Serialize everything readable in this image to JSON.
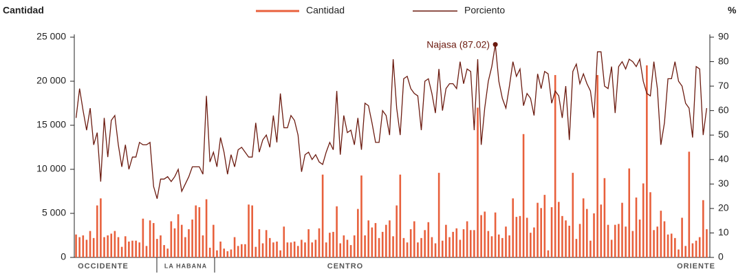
{
  "chart_data": {
    "type": "bar_line",
    "y_title": "Cantidad",
    "y2_title": "%",
    "regions": [
      "OCCIDENTE",
      "LA HABANA",
      "CENTRO",
      "ORIENTE"
    ],
    "annotation": "Najasa (87.02)",
    "ylim": [
      0,
      25000
    ],
    "yticks": [
      0,
      {
        "value": 5000,
        "label": "5 000"
      },
      {
        "value": 10000,
        "label": "10 000"
      },
      {
        "value": 15000,
        "label": "15 000"
      },
      {
        "value": 20000,
        "label": "20 000"
      },
      {
        "value": 25000,
        "label": "25 000"
      }
    ],
    "y2lim": [
      0,
      90
    ],
    "y2ticks": [
      0,
      10,
      20,
      30,
      40,
      50,
      60,
      70,
      80,
      90
    ],
    "series": [
      {
        "name": "Cantidad",
        "color": "#e8603c",
        "values": [
          2600,
          2300,
          2500,
          2000,
          3000,
          2200,
          5900,
          6700,
          2300,
          2500,
          2700,
          3000,
          2300,
          1200,
          2400,
          1800,
          1900,
          1900,
          1700,
          4400,
          1300,
          4200,
          3900,
          2100,
          2500,
          1400,
          1000,
          4100,
          3300,
          4900,
          3700,
          2300,
          3200,
          4300,
          5900,
          5700,
          2500,
          6600,
          1100,
          3700,
          800,
          1800,
          1000,
          700,
          900,
          2300,
          1300,
          1500,
          1500,
          6000,
          5900,
          1200,
          3200,
          1600,
          3100,
          2200,
          1700,
          1800,
          800,
          3500,
          1700,
          1700,
          1800,
          1300,
          2000,
          1700,
          3200,
          1700,
          2000,
          3300,
          9400,
          1700,
          2800,
          2900,
          5800,
          1600,
          2500,
          2000,
          1400,
          2500,
          5500,
          9300,
          2500,
          4200,
          3400,
          3900,
          2200,
          2900,
          3700,
          4200,
          2400,
          5900,
          9400,
          2200,
          1700,
          3200,
          4100,
          1700,
          2200,
          3100,
          4000,
          2300,
          1600,
          9600,
          1900,
          3700,
          2300,
          2900,
          3300,
          2000,
          3200,
          4100,
          3100,
          3100,
          17000,
          4800,
          5200,
          3000,
          2400,
          5100,
          2600,
          2200,
          3500,
          2500,
          6700,
          4600,
          4700,
          14000,
          4500,
          2800,
          3400,
          6200,
          5600,
          7100,
          800,
          5700,
          20700,
          6300,
          4700,
          4200,
          3600,
          9600,
          2100,
          3800,
          6700,
          5500,
          1900,
          5000,
          20700,
          6000,
          9000,
          3700,
          2000,
          3700,
          3800,
          6200,
          3500,
          10100,
          3000,
          6800,
          4300,
          8400,
          21800,
          7400,
          3100,
          3500,
          5300,
          4100,
          2600,
          2700,
          2200,
          900,
          4500,
          1300,
          12000,
          1600,
          1900,
          2300,
          6500,
          3200
        ]
      },
      {
        "name": "Porciento",
        "color": "#6b1a0f",
        "axis": "y2",
        "values": [
          57,
          69,
          60,
          52,
          61,
          46,
          51,
          31,
          57,
          41,
          56,
          58,
          46,
          37,
          46,
          36,
          41,
          41,
          47,
          46,
          46,
          47,
          29,
          24,
          32,
          32,
          33,
          31,
          33,
          36,
          27,
          30,
          33,
          37,
          37,
          37,
          34,
          66,
          39,
          43,
          37,
          49,
          43,
          34,
          42,
          37,
          44,
          45,
          43,
          41,
          41,
          55,
          43,
          48,
          50,
          45,
          58,
          47,
          67,
          53,
          53,
          58,
          56,
          50,
          35,
          42,
          43,
          40,
          42,
          39,
          38,
          43,
          47,
          44,
          68,
          42,
          58,
          51,
          52,
          46,
          57,
          44,
          63,
          62,
          55,
          47,
          47,
          60,
          58,
          50,
          81,
          61,
          50,
          73,
          74,
          69,
          67,
          66,
          52,
          72,
          73,
          67,
          59,
          77,
          60,
          69,
          71,
          71,
          69,
          80,
          71,
          77,
          76,
          52,
          81,
          46,
          61,
          72,
          78,
          87.02,
          72,
          65,
          61,
          70,
          80,
          74,
          77,
          62,
          67,
          65,
          58,
          75,
          69,
          76,
          75,
          63,
          68,
          66,
          57,
          70,
          48,
          76,
          79,
          71,
          75,
          71,
          68,
          57,
          84,
          84,
          70,
          69,
          78,
          59,
          78,
          80,
          77,
          81,
          80,
          78,
          81,
          72,
          67,
          66,
          80,
          69,
          46,
          55,
          73,
          73,
          80,
          72,
          70,
          63,
          61,
          49,
          78,
          77,
          50,
          61
        ]
      }
    ]
  }
}
